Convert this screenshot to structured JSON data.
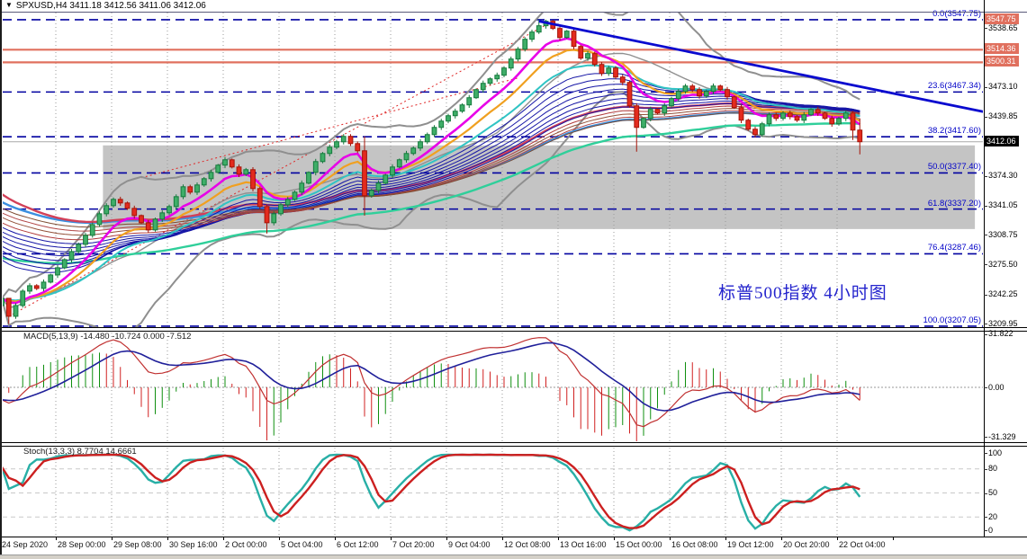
{
  "window": {
    "title": "SPXUSD,H4  3411.18 3412.56 3411.06 3412.06",
    "dropdown_icon": "▼"
  },
  "annotation": {
    "text": "标普500指数 4小时图",
    "color": "#2323CD"
  },
  "macd": {
    "label": "MACD(5,13,9) -14.480 -10.724 0.000 -7.512",
    "axis": [
      {
        "label": "31.822",
        "value": 31.822
      },
      {
        "label": "0.00",
        "value": 0
      },
      {
        "label": "-31.329",
        "value": -31.329
      }
    ]
  },
  "stoch": {
    "label": "Stoch(13,3,3) 8.7704 14.6661",
    "axis": [
      {
        "label": "100",
        "value": 100
      },
      {
        "label": "80",
        "value": 80
      },
      {
        "label": "50",
        "value": 50
      },
      {
        "label": "20",
        "value": 20
      },
      {
        "label": "0",
        "value": 0
      }
    ],
    "level_lines": [
      80,
      50,
      20
    ]
  },
  "colors": {
    "bull_fill": "#3FAE68",
    "bull_stroke": "#157A3C",
    "bear_fill": "#E32B1E",
    "bear_stroke": "#A51408",
    "bollinger": "#8F8F8F",
    "zone": "#C4C4C4",
    "grid": "#9a9a9a",
    "fib_line": "#0000A0",
    "fib_text": "#0000C8",
    "sr_line": "#E0705E",
    "sr_label_bg": "#E0705E",
    "price_label_bg": "#000000",
    "current_price_line": "#A8A8A8",
    "trend_down": "#0A0ACF",
    "trend_dotted": "#E02828",
    "macd_line": "#C03030",
    "macd_signal": "#20209A",
    "hist_up": "#0F8F0F",
    "hist_down": "#D02020",
    "stoch_k": "#28AFA6",
    "stoch_d": "#CC2020",
    "level_dash": "#C9C9C9"
  },
  "price_axis": {
    "plain_ticks": [
      {
        "label": "3538.65",
        "price": 3538.65
      },
      {
        "label": "3473.10",
        "price": 3473.1
      },
      {
        "label": "3439.85",
        "price": 3439.85
      },
      {
        "label": "3374.30",
        "price": 3374.3
      },
      {
        "label": "3341.05",
        "price": 3341.05
      },
      {
        "label": "3308.75",
        "price": 3308.75
      },
      {
        "label": "3275.50",
        "price": 3275.5
      },
      {
        "label": "3242.25",
        "price": 3242.25
      },
      {
        "label": "3209.95",
        "price": 3209.95
      }
    ],
    "highlight_ticks": [
      {
        "label": "3547.75",
        "price": 3547.75,
        "bg": "salmon"
      },
      {
        "label": "3514.36",
        "price": 3514.36,
        "bg": "salmon"
      },
      {
        "label": "3500.31",
        "price": 3500.31,
        "bg": "salmon"
      },
      {
        "label": "3412.06",
        "price": 3412.06,
        "bg": "black"
      }
    ]
  },
  "x_axis": {
    "labels": [
      "24 Sep 2020",
      "28 Sep 00:00",
      "29 Sep 08:00",
      "30 Sep 16:00",
      "2 Oct 00:00",
      "5 Oct 04:00",
      "6 Oct 12:00",
      "7 Oct 20:00",
      "9 Oct 04:00",
      "12 Oct 08:00",
      "13 Oct 16:00",
      "15 Oct 00:00",
      "16 Oct 08:00",
      "19 Oct 12:00",
      "20 Oct 20:00",
      "22 Oct 04:00"
    ]
  },
  "chart_data": {
    "type": "candlestick",
    "symbol": "SPXUSD",
    "timeframe": "H4",
    "quote": {
      "open": "3411.18",
      "high": "3412.56",
      "low": "3411.06",
      "close": "3412.06"
    },
    "current_price": 3412.06,
    "first_open": 3230,
    "closes": [
      3238,
      3218,
      3230,
      3246,
      3252,
      3249,
      3256,
      3264,
      3272,
      3281,
      3290,
      3298,
      3308,
      3320,
      3332,
      3341,
      3348,
      3344,
      3338,
      3330,
      3322,
      3314,
      3326,
      3333,
      3340,
      3351,
      3362,
      3356,
      3364,
      3371,
      3378,
      3386,
      3392,
      3384,
      3376,
      3381,
      3360,
      3340,
      3322,
      3332,
      3342,
      3348,
      3356,
      3366,
      3378,
      3390,
      3399,
      3406,
      3412,
      3418,
      3410,
      3402,
      3352,
      3358,
      3366,
      3375,
      3384,
      3392,
      3399,
      3405,
      3412,
      3420,
      3428,
      3435,
      3441,
      3446,
      3453,
      3461,
      3470,
      3477,
      3482,
      3486,
      3494,
      3504,
      3515,
      3526,
      3534,
      3541,
      3546,
      3538,
      3528,
      3535,
      3518,
      3505,
      3510,
      3498,
      3488,
      3494,
      3484,
      3478,
      3452,
      3428,
      3438,
      3448,
      3444,
      3452,
      3460,
      3468,
      3474,
      3470,
      3463,
      3468,
      3474,
      3470,
      3462,
      3450,
      3436,
      3426,
      3420,
      3432,
      3442,
      3438,
      3444,
      3440,
      3436,
      3442,
      3448,
      3444,
      3438,
      3432,
      3438,
      3444,
      3425,
      3412.06
    ],
    "wick_overrides": {
      "1": [
        3222,
        3209.5
      ],
      "38": [
        0,
        3310
      ],
      "52": [
        3418,
        3330
      ],
      "77": [
        3547.75,
        0
      ],
      "78": [
        3547.75,
        0
      ],
      "91": [
        0,
        3401
      ],
      "122": [
        0,
        3414
      ],
      "123": [
        3438,
        3398
      ]
    },
    "fib_levels": [
      {
        "label": "0.0(3547.75)",
        "price": 3547.75
      },
      {
        "label": "23.6(3467.34)",
        "price": 3467.34
      },
      {
        "label": "38.2(3417.60)",
        "price": 3417.6
      },
      {
        "label": "50.0(3377.40)",
        "price": 3377.4
      },
      {
        "label": "61.8(3337.20)",
        "price": 3337.2
      },
      {
        "label": "76.4(3287.46)",
        "price": 3287.46
      },
      {
        "label": "100.0(3207.05)",
        "price": 3207.05
      }
    ],
    "sr_lines": [
      3514.36,
      3500.31
    ],
    "support_zone": {
      "from_bar": 14.5,
      "to_bar": 139.5,
      "top_price": 3408,
      "bottom_price": 3315
    },
    "trendlines": [
      {
        "name": "down-trendline",
        "from_bar": 77,
        "from_price": 3546,
        "to_bar": 141,
        "to_price": 3445,
        "style": "solid",
        "width": 2.8,
        "color_key": "trend_down"
      },
      {
        "name": "up-trendline-main",
        "from_bar": 1,
        "from_price": 3218,
        "to_bar": 79,
        "to_price": 3546,
        "style": "dotted",
        "width": 1,
        "color_key": "trend_dotted"
      },
      {
        "name": "up-trendline-inner",
        "from_bar": 20,
        "from_price": 3372,
        "to_bar": 74,
        "to_price": 3483,
        "style": "dotted",
        "width": 1,
        "color_key": "trend_dotted"
      }
    ],
    "indicators": {
      "bollinger": {
        "period": 20,
        "dev": 2
      },
      "ema_fast": [
        {
          "period": 8,
          "color": "#E800E8",
          "width": 2.6
        },
        {
          "period": 13,
          "color": "#F0A020",
          "width": 2.2
        },
        {
          "period": 21,
          "color": "#30C4C4",
          "width": 2.0
        }
      ],
      "ema_long": [
        {
          "period": 85,
          "seed": 3284,
          "color": "#2FCF9A",
          "width": 2.4
        },
        {
          "period": 70,
          "seed": 3348,
          "color": "#3A8FE0",
          "width": 2.4
        },
        {
          "period": 55,
          "seed": 3358,
          "color": "#D24058",
          "width": 2.4
        }
      ],
      "fan": [
        {
          "period": 26,
          "seed": 3284,
          "color": "#1616A6"
        },
        {
          "period": 30,
          "seed": 3289,
          "color": "#1616A6"
        },
        {
          "period": 34,
          "seed": 3294,
          "color": "#1616A6"
        },
        {
          "period": 38,
          "seed": 3299,
          "color": "#1616A6"
        },
        {
          "period": 42,
          "seed": 3305,
          "color": "#1616A6"
        },
        {
          "period": 46,
          "seed": 3310,
          "color": "#1616A6"
        },
        {
          "period": 50,
          "seed": 3315,
          "color": "#1616A6"
        },
        {
          "period": 54,
          "seed": 3320,
          "color": "#1616A6"
        },
        {
          "period": 58,
          "seed": 3325,
          "color": "#B03A3A"
        },
        {
          "period": 62,
          "seed": 3331,
          "color": "#925038"
        },
        {
          "period": 66,
          "seed": 3336,
          "color": "#B04545"
        },
        {
          "period": 70,
          "seed": 3341,
          "color": "#7E4C32"
        }
      ],
      "macd": {
        "fast": 5,
        "slow": 13,
        "signal": 9
      },
      "stoch": {
        "k": 13,
        "slowing": 3,
        "d": 3
      }
    }
  }
}
